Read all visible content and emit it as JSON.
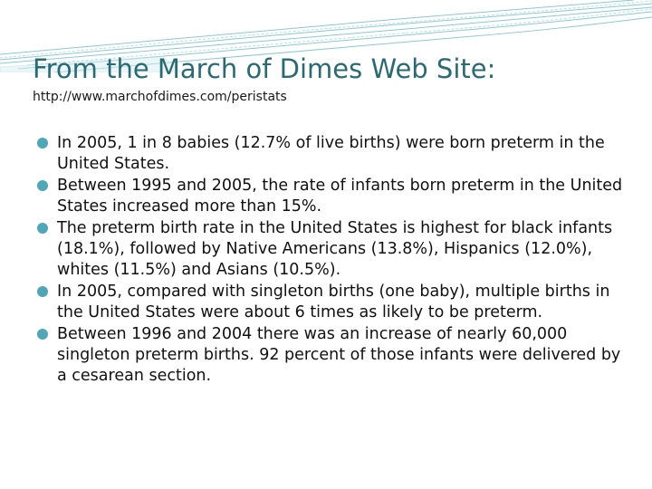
{
  "slide": {
    "title": "From the March of Dimes Web Site:",
    "subtitle": "http://www.marchofdimes.com/peristats",
    "bullets": [
      "In 2005, 1 in 8 babies (12.7% of live births) were born preterm in the United States.",
      "Between 1995 and 2005, the rate of infants born preterm in the United States increased more than 15%.",
      "The preterm birth rate in the United States is highest for black infants (18.1%), followed by Native Americans (13.8%), Hispanics (12.0%), whites (11.5%) and Asians (10.5%).",
      "In 2005, compared with singleton births (one baby), multiple births in the United States were about 6 times as likely to be preterm.",
      "Between 1996 and 2004 there was an increase of nearly 60,000 singleton preterm births. 92 percent of those infants were delivered by a cesarean section."
    ]
  },
  "colors": {
    "title": "#2c6a72",
    "bullet": "#4fa6b6",
    "decoration": "#8cc8d2"
  }
}
